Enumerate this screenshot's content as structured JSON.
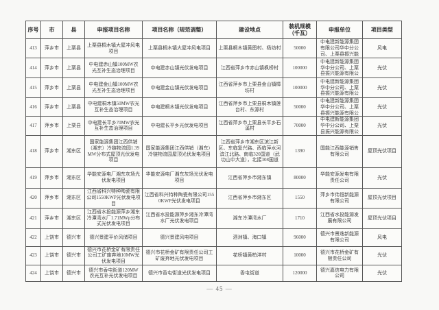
{
  "document": {
    "page_footer": "— 45 —",
    "table": {
      "columns": [
        {
          "label": "序号"
        },
        {
          "label": "市"
        },
        {
          "label": "县"
        },
        {
          "label": "申报项目名称"
        },
        {
          "label": "项目名称（规范调整）"
        },
        {
          "label": "建设地点"
        },
        {
          "label": "装机规模（千瓦）"
        },
        {
          "label": "申报单位"
        },
        {
          "label": "项目类型"
        }
      ],
      "rows": [
        {
          "no": "413",
          "city": "萍乡市",
          "county": "上栗县",
          "declared_name": "上栗县桐木镇大屋冲风电项目",
          "adjusted_name": "上栗县桐木镇大屋冲风电项目",
          "location": "上栗县桐木镇黄图村、杨坊村",
          "capacity_kw": "50000",
          "applicant": "中电建新能源集团有限公司华中分公司、上栗县振兴能",
          "type": "风电"
        },
        {
          "no": "414",
          "city": "萍乡市",
          "county": "上栗县",
          "declared_name": "中电建赤山镇100MW农光互补生态治理项目",
          "adjusted_name": "中电建赤山镇光伏发电项目",
          "location": "江西省萍乡市赤山镇枫桥村",
          "capacity_kw": "100000",
          "applicant": "中电建新能源集团华中分公司、上栗县振兴能源有限公",
          "type": "光伏"
        },
        {
          "no": "415",
          "city": "萍乡市",
          "county": "上栗县",
          "declared_name": "中电建金山镇100MW农光互补生态治理项目",
          "adjusted_name": "中电建金山镇光伏发电项目",
          "location": "江西省萍乡市上栗县金山镇樟坊村",
          "capacity_kw": "100000",
          "applicant": "中电建新能源集团华中分公司、上栗县振兴能源有限公",
          "type": "光伏"
        },
        {
          "no": "416",
          "city": "萍乡市",
          "county": "上栗县",
          "declared_name": "中电建桐木镇50MW农光互补生态治理项目",
          "adjusted_name": "中电建桐木镇光伏发电项目",
          "location": "江西省萍乡市上栗县桐木镇莲台村、东源村",
          "capacity_kw": "50000",
          "applicant": "中电建新能源集团华中分公司、上栗县振兴能源有限公",
          "type": "光伏"
        },
        {
          "no": "417",
          "city": "萍乡市",
          "county": "上栗县",
          "declared_name": "中电建长平乡70MW农光互补生态治理项目",
          "adjusted_name": "中电建长平乡光伏发电项目",
          "location": "江西省萍乡市上栗县长平乡石溪村",
          "capacity_kw": "70000",
          "applicant": "中电建新能源集团华中分公司、上栗县振兴能源有限公",
          "type": "光伏"
        },
        {
          "no": "418",
          "city": "萍乡市",
          "county": "湘东区",
          "declared_name": "国家能源集团江西供销（湘东）冷链物流园1.39MW分布式屋顶光伏发电项目",
          "adjusted_name": "国家能源集团江西供销（湘东）冷链物流园屋顶光伏发电项目",
          "location": "江西省萍乡市湘东区滨江新区、东临复兴路、西临萍水河滨江北路、南临320国道（武功山中大道），北接308国道",
          "capacity_kw": "1390",
          "applicant": "国能江西能源销售有限公司",
          "type": "屋顶光伏项目"
        },
        {
          "no": "419",
          "city": "萍乡市",
          "county": "湘东区",
          "declared_name": "华能安源电厂湘东灰场光伏发电项目",
          "adjusted_name": "华能安源电厂湘东灰场光伏发电项目",
          "location": "江西省萍乡市湘东镇",
          "capacity_kw": "80000",
          "applicant": "华能安源发电有限责任公司",
          "type": "光伏"
        },
        {
          "no": "420",
          "city": "萍乡市",
          "county": "湘东区",
          "declared_name": "江西省科兴特种陶瓷有限公司1550KWP光伏发电项目",
          "adjusted_name": "江西省科兴特种陶瓷有限公司1550KWP光伏发电项目",
          "location": "江西省萍乡市湘东区",
          "capacity_kw": "1550",
          "applicant": "萍乡市伟恒新能源有限公司",
          "type": "屋顶光伏项目"
        },
        {
          "no": "421",
          "city": "萍乡市",
          "county": "湘东区",
          "declared_name": "江西省水投能源萍乡湘东冷潭湾水厂1.71MWp分布式光伏发电项目",
          "adjusted_name": "江西省水投能源萍乡湘东冷潭湾水厂光伏发电项目",
          "location": "湘东冷潭湾水厂",
          "capacity_kw": "1710",
          "applicant": "江西省水投能源发展有限公司",
          "type": "屋顶光伏项目"
        },
        {
          "no": "422",
          "city": "上饶市",
          "county": "德兴市",
          "declared_name": "德兴景建平价风储项目",
          "adjusted_name": "德兴景建风电项目",
          "location": "泗洲镇、海口镇",
          "capacity_kw": "96000",
          "applicant": "德兴市景逸新能源有限公司",
          "type": "风电"
        },
        {
          "no": "423",
          "city": "上饶市",
          "county": "德兴市",
          "declared_name": "德兴市花桥金矿有限责任公司工矿废弃地10MW光伏发电项目",
          "adjusted_name": "德兴市花桥金矿有限责任公司工矿废弃地光伏发电项目",
          "location": "花桥镇黄柏洋村",
          "capacity_kw": "10000",
          "applicant": "德兴市花桥金矿有限责任公司",
          "type": "光伏"
        },
        {
          "no": "424",
          "city": "上饶市",
          "county": "德兴市",
          "declared_name": "德兴市香屯街道120MW农光互补光伏发电项目",
          "adjusted_name": "德兴市香屯街道光伏发电项目",
          "location": "香屯街道",
          "capacity_kw": "120000",
          "applicant": "德兴嘉信电力有限公司",
          "type": "光伏"
        }
      ]
    }
  },
  "colors": {
    "page_bg": "#f8f8f6",
    "table_border": "#555555",
    "text": "#3d3d3d"
  }
}
